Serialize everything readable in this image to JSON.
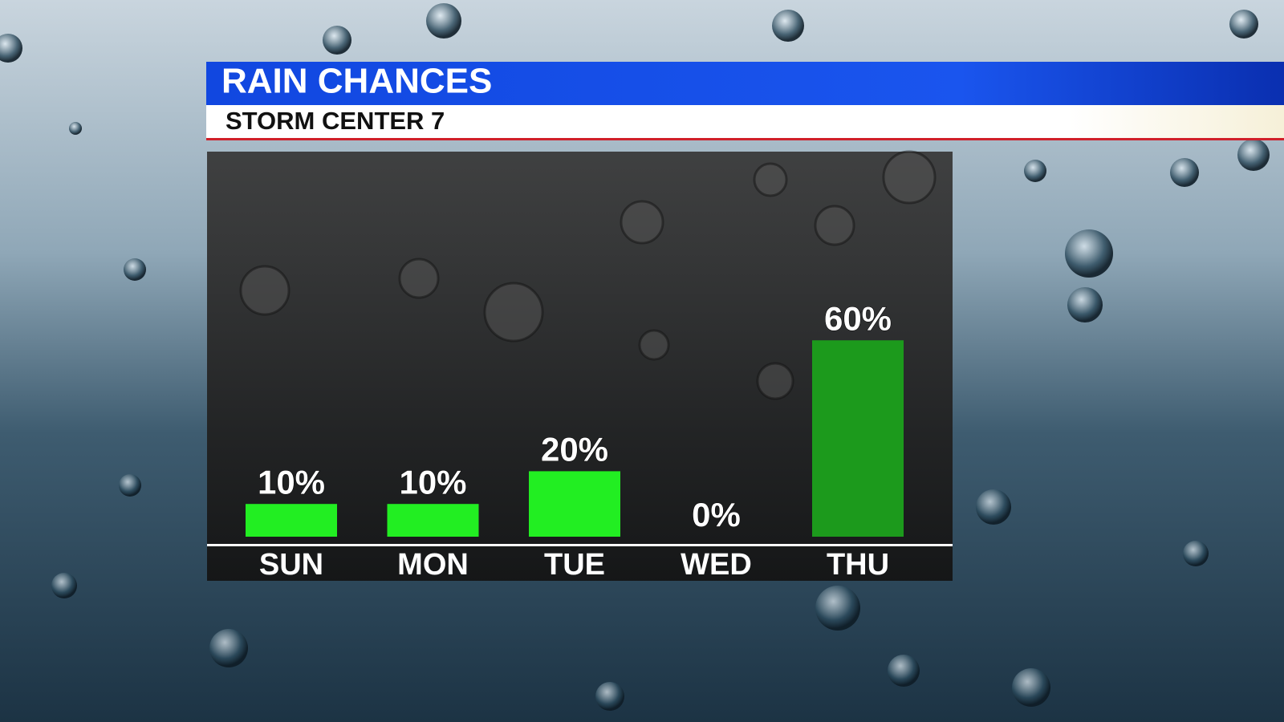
{
  "chart_data": {
    "type": "bar",
    "title": "RAIN CHANCES",
    "subtitle": "STORM CENTER 7",
    "categories": [
      "SUN",
      "MON",
      "TUE",
      "WED",
      "THU"
    ],
    "values": [
      10,
      10,
      20,
      0,
      60
    ],
    "value_labels": [
      "10%",
      "10%",
      "20%",
      "0%",
      "60%"
    ],
    "colors": [
      "#22ee22",
      "#22ee22",
      "#22ee22",
      "#22ee22",
      "#1c9a1c"
    ]
  }
}
